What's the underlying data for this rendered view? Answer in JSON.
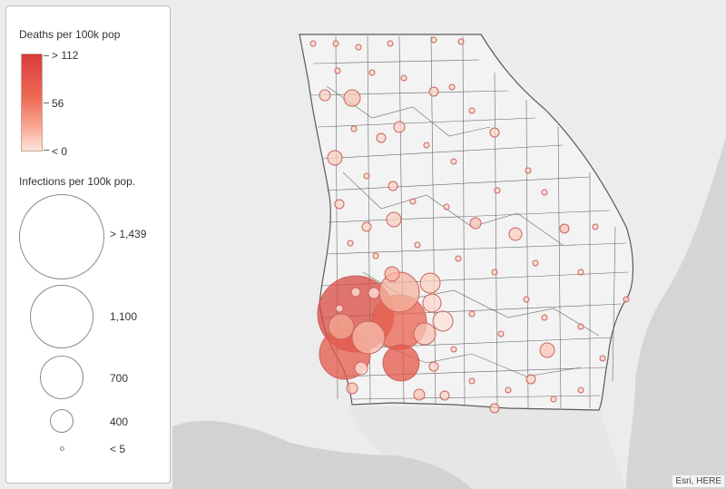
{
  "legend": {
    "deaths_title": "Deaths per 100k pop",
    "deaths_high": "> 112",
    "deaths_mid": "56",
    "deaths_low": "< 0",
    "infections_title": "Infections per 100k pop.",
    "size_labels": [
      "> 1,439",
      "1,100",
      "700",
      "400",
      "< 5"
    ]
  },
  "attribution": "Esri, HERE",
  "colors": {
    "land": "#f3f3f3",
    "water": "#d2d2d2",
    "border": "#5a5a5a",
    "symbol_low": "#f9c7b8",
    "symbol_high": "#d94a42"
  }
}
